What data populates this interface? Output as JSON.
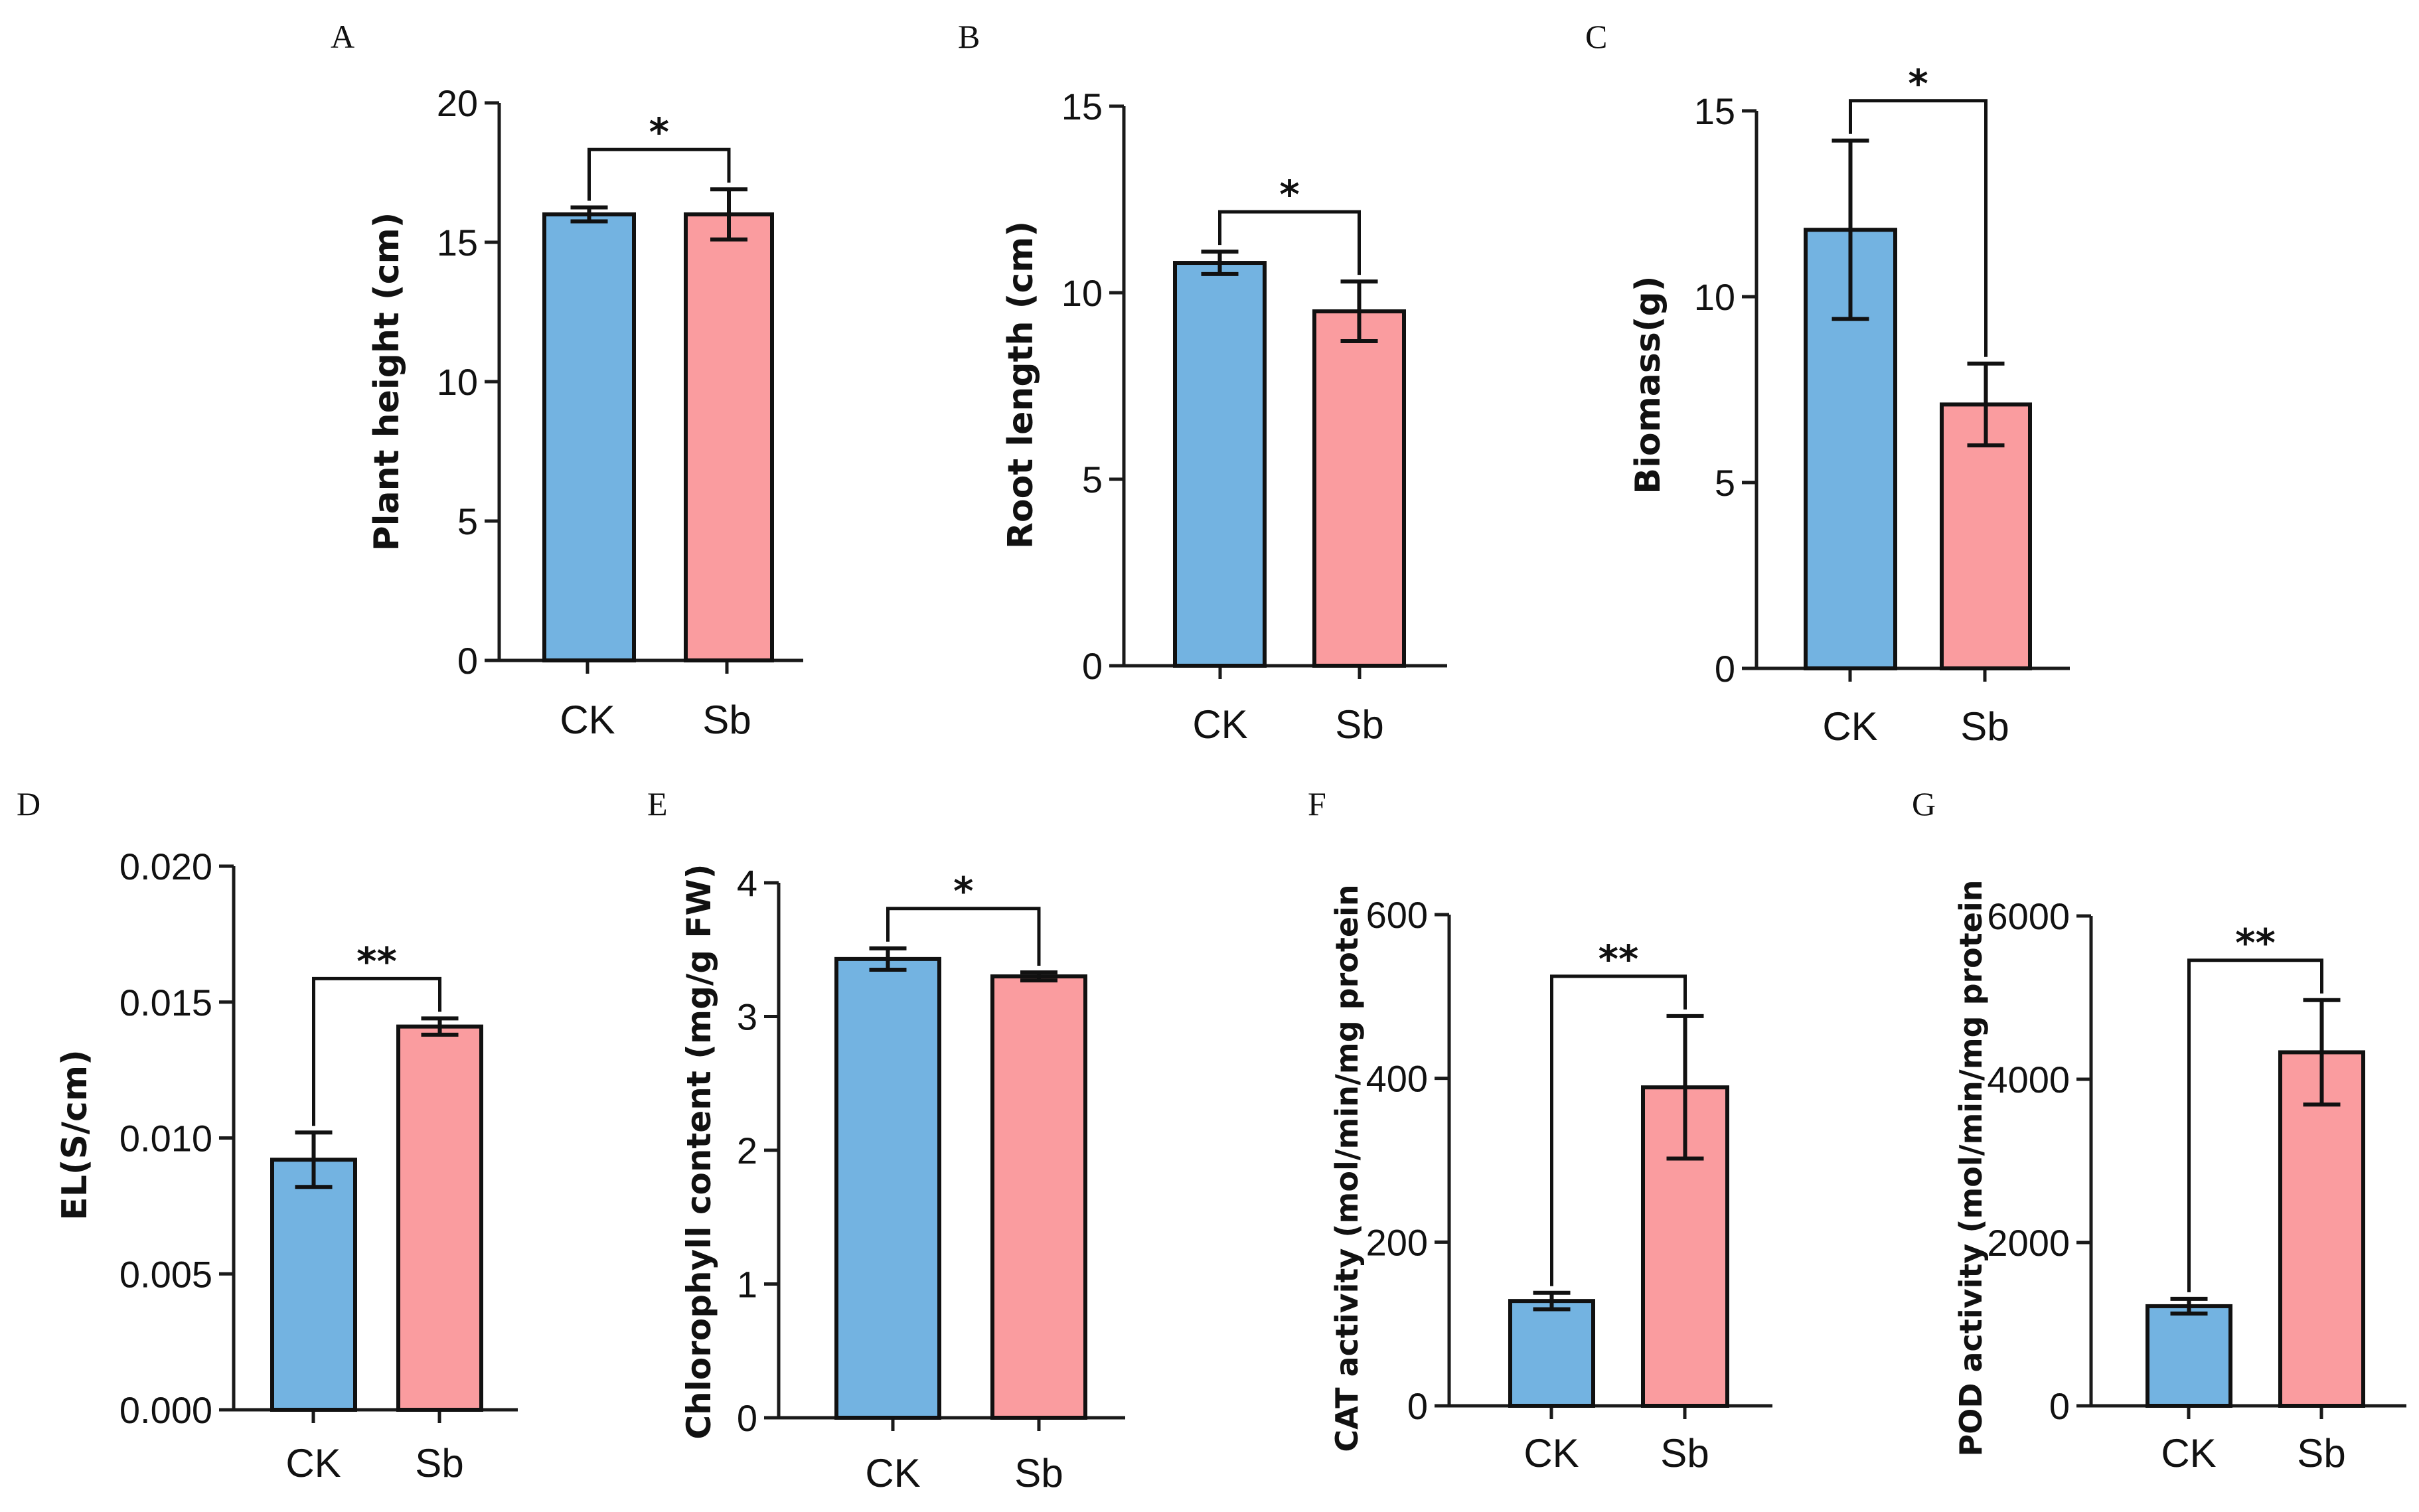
{
  "chart_data": [
    {
      "type": "bar",
      "panel": "A",
      "categories": [
        "CK",
        "Sb"
      ],
      "values": [
        16.0,
        16.0
      ],
      "errors": [
        0.25,
        0.9
      ],
      "ylabel": "Plant height (cm)",
      "ylim": [
        0,
        20
      ],
      "yticks": [
        {
          "v": 0,
          "t": "0"
        },
        {
          "v": 5,
          "t": "5"
        },
        {
          "v": 10,
          "t": "10"
        },
        {
          "v": 15,
          "t": "15"
        },
        {
          "v": 20,
          "t": "20"
        }
      ],
      "significance": "*",
      "colors": [
        "#73b3e1",
        "#fa9c9f"
      ]
    },
    {
      "type": "bar",
      "panel": "B",
      "categories": [
        "CK",
        "Sb"
      ],
      "values": [
        10.8,
        9.5
      ],
      "errors": [
        0.3,
        0.8
      ],
      "ylabel": "Root length (cm)",
      "ylim": [
        0,
        15
      ],
      "yticks": [
        {
          "v": 0,
          "t": "0"
        },
        {
          "v": 5,
          "t": "5"
        },
        {
          "v": 10,
          "t": "10"
        },
        {
          "v": 15,
          "t": "15"
        }
      ],
      "significance": "*",
      "colors": [
        "#73b3e1",
        "#fa9c9f"
      ]
    },
    {
      "type": "bar",
      "panel": "C",
      "categories": [
        "CK",
        "Sb"
      ],
      "values": [
        11.8,
        7.1
      ],
      "errors": [
        2.4,
        1.1
      ],
      "ylabel": "Biomass(g)",
      "ylim": [
        0,
        15
      ],
      "yticks": [
        {
          "v": 0,
          "t": "0"
        },
        {
          "v": 5,
          "t": "5"
        },
        {
          "v": 10,
          "t": "10"
        },
        {
          "v": 15,
          "t": "15"
        }
      ],
      "significance": "*",
      "colors": [
        "#73b3e1",
        "#fa9c9f"
      ]
    },
    {
      "type": "bar",
      "panel": "D",
      "categories": [
        "CK",
        "Sb"
      ],
      "values": [
        0.0092,
        0.0141
      ],
      "errors": [
        0.001,
        0.0003
      ],
      "ylabel": "EL(S/cm)",
      "ylim": [
        0,
        0.02
      ],
      "yticks": [
        {
          "v": 0,
          "t": "0.000"
        },
        {
          "v": 0.005,
          "t": "0.005"
        },
        {
          "v": 0.01,
          "t": "0.010"
        },
        {
          "v": 0.015,
          "t": "0.015"
        },
        {
          "v": 0.02,
          "t": "0.020"
        }
      ],
      "significance": "**",
      "colors": [
        "#73b3e1",
        "#fa9c9f"
      ]
    },
    {
      "type": "bar",
      "panel": "E",
      "categories": [
        "CK",
        "Sb"
      ],
      "values": [
        3.43,
        3.3
      ],
      "errors": [
        0.08,
        0.03
      ],
      "ylabel": "Chlorophyll content (mg/g FW)",
      "ylim": [
        0,
        4
      ],
      "yticks": [
        {
          "v": 0,
          "t": "0"
        },
        {
          "v": 1,
          "t": "1"
        },
        {
          "v": 2,
          "t": "2"
        },
        {
          "v": 3,
          "t": "3"
        },
        {
          "v": 4,
          "t": "4"
        }
      ],
      "significance": "*",
      "colors": [
        "#73b3e1",
        "#fa9c9f"
      ]
    },
    {
      "type": "bar",
      "panel": "F",
      "categories": [
        "CK",
        "Sb"
      ],
      "values": [
        128,
        389
      ],
      "errors": [
        10,
        87
      ],
      "ylabel": "CAT activity (mol/min/mg protein",
      "ylim": [
        0,
        600
      ],
      "yticks": [
        {
          "v": 0,
          "t": "0"
        },
        {
          "v": 200,
          "t": "200"
        },
        {
          "v": 400,
          "t": "400"
        },
        {
          "v": 600,
          "t": "600"
        }
      ],
      "significance": "**",
      "colors": [
        "#73b3e1",
        "#fa9c9f"
      ]
    },
    {
      "type": "bar",
      "panel": "G",
      "categories": [
        "CK",
        "Sb"
      ],
      "values": [
        1220,
        4330
      ],
      "errors": [
        90,
        640
      ],
      "ylabel": "POD activity (mol/min/mg protein",
      "ylim": [
        0,
        6000
      ],
      "yticks": [
        {
          "v": 0,
          "t": "0"
        },
        {
          "v": 2000,
          "t": "2000"
        },
        {
          "v": 4000,
          "t": "4000"
        },
        {
          "v": 6000,
          "t": "6000"
        }
      ],
      "significance": "**",
      "colors": [
        "#73b3e1",
        "#fa9c9f"
      ]
    }
  ]
}
